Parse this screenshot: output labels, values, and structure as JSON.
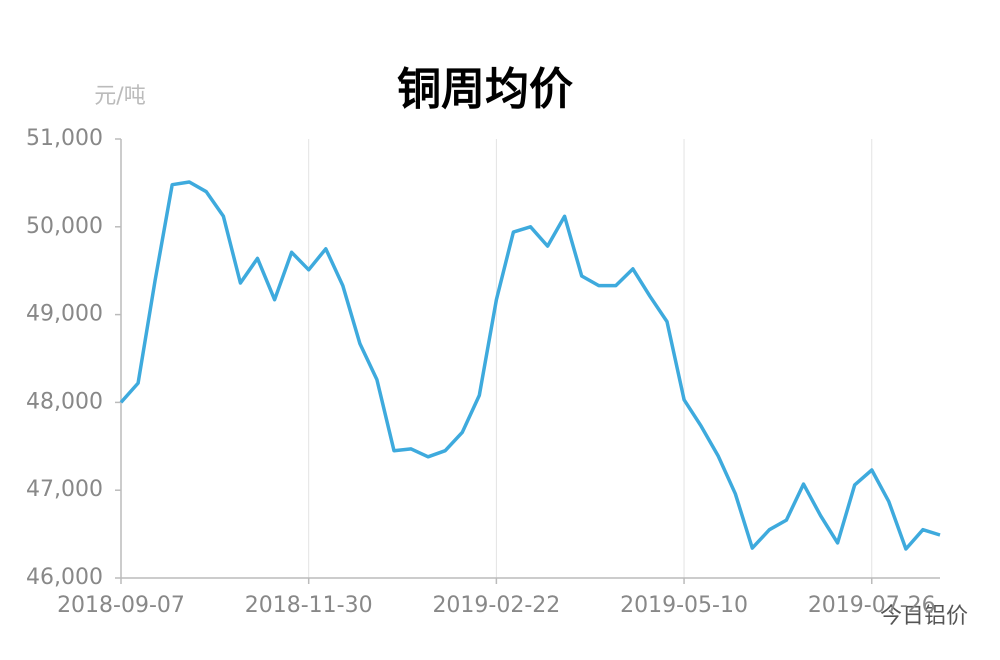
{
  "chart_data": {
    "type": "line",
    "title": "铜周均价",
    "y_label": "元/吨",
    "watermark": "今日铝价",
    "categories": [
      "2018-09-07",
      null,
      null,
      null,
      null,
      null,
      null,
      null,
      null,
      null,
      null,
      "2018-11-30",
      null,
      null,
      null,
      null,
      null,
      null,
      null,
      null,
      null,
      null,
      "2019-02-22",
      null,
      null,
      null,
      null,
      null,
      null,
      null,
      null,
      null,
      null,
      "2019-05-10",
      null,
      null,
      null,
      null,
      null,
      null,
      null,
      null,
      null,
      null,
      "2019-07-26",
      null,
      null,
      null,
      null
    ],
    "series": [
      {
        "name": "铜周均价",
        "color": "#3eaadd",
        "values": [
          48000,
          48220,
          49390,
          50480,
          50510,
          50400,
          50120,
          49360,
          49640,
          49170,
          49710,
          49510,
          49750,
          49330,
          48670,
          48260,
          47450,
          47470,
          47380,
          47450,
          47660,
          48080,
          49170,
          49940,
          50000,
          49780,
          50120,
          49440,
          49330,
          49330,
          49520,
          49210,
          48920,
          48030,
          47730,
          47390,
          46960,
          46340,
          46550,
          46660,
          47070,
          46710,
          46400,
          47060,
          47230,
          46870,
          46330,
          46550,
          46490
        ]
      }
    ],
    "ylim": [
      46000,
      51000
    ],
    "yticks": [
      {
        "value": 46000,
        "label": "46,000"
      },
      {
        "value": 47000,
        "label": "47,000"
      },
      {
        "value": 48000,
        "label": "48,000"
      },
      {
        "value": 49000,
        "label": "49,000"
      },
      {
        "value": 50000,
        "label": "50,000"
      },
      {
        "value": 51000,
        "label": "51,000"
      }
    ],
    "grid": true
  }
}
